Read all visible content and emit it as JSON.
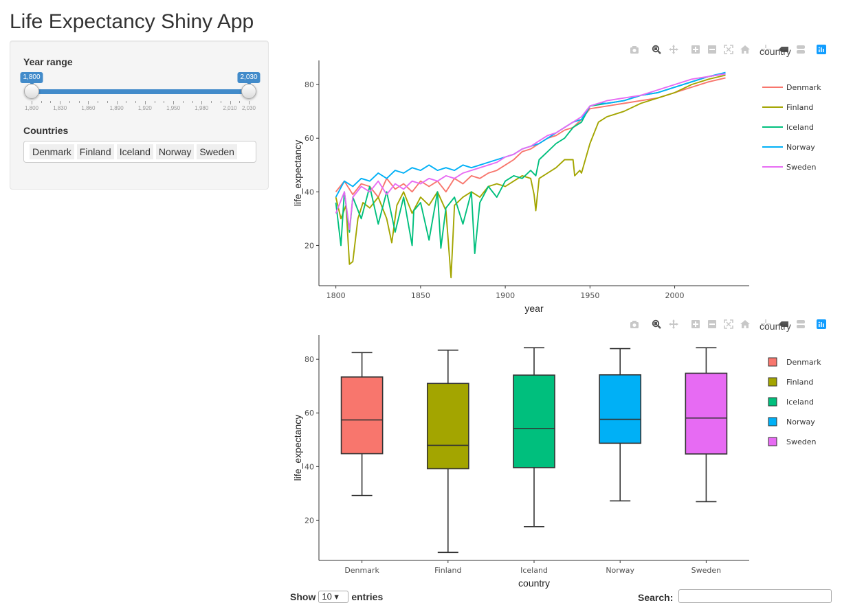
{
  "app": {
    "title": "Life Expectancy Shiny App"
  },
  "sidebar": {
    "year_range": {
      "label": "Year range",
      "min": 1800,
      "max": 2030,
      "selected_from": 1800,
      "selected_to": 2030,
      "from_label": "1,800",
      "to_label": "2,030",
      "grid_labels": [
        "1,800",
        "1,830",
        "1,860",
        "1,890",
        "1,920",
        "1,950",
        "1,980",
        "2,010",
        "2,030"
      ],
      "grid_values": [
        1800,
        1830,
        1860,
        1890,
        1920,
        1950,
        1980,
        2010,
        2030
      ]
    },
    "countries": {
      "label": "Countries",
      "selected": [
        "Denmark",
        "Finland",
        "Iceland",
        "Norway",
        "Sweden"
      ]
    }
  },
  "modebar_icons": [
    "camera-icon",
    "zoom-icon",
    "pan-icon",
    "zoom-in-icon",
    "zoom-out-icon",
    "autoscale-icon",
    "reset-axes-icon",
    "spike-lines-icon",
    "hover-closest-icon",
    "hover-compare-icon",
    "plotly-logo-icon"
  ],
  "colors": {
    "Denmark": "#F8766D",
    "Finland": "#A3A500",
    "Iceland": "#00BF7D",
    "Norway": "#00B0F6",
    "Sweden": "#E76BF3",
    "accent": "#428bca"
  },
  "chart_data": [
    {
      "type": "line",
      "title": "",
      "xlabel": "year",
      "ylabel": "life_expectancy",
      "legend_title": "country",
      "legend_position": "right",
      "grid": false,
      "xlim": [
        1790,
        2044
      ],
      "ylim": [
        5,
        89
      ],
      "x_ticks": [
        1800,
        1850,
        1900,
        1950,
        2000
      ],
      "y_ticks": [
        20,
        40,
        60,
        80
      ],
      "series": [
        {
          "name": "Denmark",
          "x": [
            1800,
            1805,
            1810,
            1815,
            1820,
            1825,
            1830,
            1835,
            1840,
            1845,
            1850,
            1855,
            1860,
            1865,
            1870,
            1875,
            1880,
            1885,
            1890,
            1895,
            1900,
            1905,
            1910,
            1915,
            1920,
            1925,
            1930,
            1935,
            1940,
            1945,
            1950,
            1960,
            1970,
            1980,
            1990,
            2000,
            2010,
            2020,
            2030
          ],
          "y": [
            40,
            44,
            39,
            43,
            42,
            38,
            45,
            41,
            43,
            40,
            44,
            42,
            44,
            40,
            45,
            43,
            46,
            45,
            47,
            48,
            50,
            52,
            55,
            56,
            58,
            60,
            61,
            63,
            64,
            67,
            71,
            72,
            73,
            74,
            75,
            77,
            79,
            81,
            82.5
          ]
        },
        {
          "name": "Finland",
          "x": [
            1800,
            1803,
            1806,
            1808,
            1810,
            1813,
            1816,
            1820,
            1825,
            1830,
            1833,
            1836,
            1840,
            1845,
            1850,
            1855,
            1860,
            1865,
            1867,
            1868,
            1870,
            1875,
            1880,
            1885,
            1890,
            1895,
            1900,
            1905,
            1910,
            1915,
            1917,
            1918,
            1920,
            1925,
            1930,
            1935,
            1940,
            1941,
            1944,
            1945,
            1950,
            1955,
            1960,
            1970,
            1980,
            1990,
            2000,
            2010,
            2020,
            2030
          ],
          "y": [
            38,
            30,
            35,
            13,
            14,
            30,
            36,
            34,
            38,
            30,
            21,
            35,
            40,
            32,
            38,
            35,
            40,
            33,
            16,
            8,
            35,
            38,
            40,
            38,
            42,
            43,
            42,
            44,
            46,
            45,
            39,
            33,
            45,
            47,
            49,
            52,
            52,
            46,
            48,
            47,
            58,
            66,
            68,
            70,
            73,
            75,
            77,
            80,
            82,
            83.5
          ]
        },
        {
          "name": "Iceland",
          "x": [
            1800,
            1803,
            1805,
            1808,
            1810,
            1815,
            1820,
            1825,
            1830,
            1835,
            1840,
            1845,
            1846,
            1850,
            1855,
            1860,
            1862,
            1865,
            1870,
            1875,
            1880,
            1882,
            1885,
            1890,
            1895,
            1900,
            1905,
            1910,
            1915,
            1918,
            1920,
            1925,
            1930,
            1935,
            1940,
            1945,
            1950,
            1960,
            1970,
            1980,
            1990,
            2000,
            2010,
            2020,
            2030
          ],
          "y": [
            36,
            20,
            40,
            25,
            38,
            30,
            42,
            28,
            40,
            25,
            38,
            20,
            33,
            36,
            22,
            40,
            19,
            34,
            38,
            28,
            40,
            17,
            36,
            42,
            38,
            44,
            46,
            45,
            48,
            46,
            52,
            55,
            58,
            60,
            64,
            66,
            72,
            73,
            74,
            76,
            77,
            79,
            81,
            83,
            84
          ]
        },
        {
          "name": "Norway",
          "x": [
            1800,
            1805,
            1810,
            1815,
            1820,
            1825,
            1830,
            1835,
            1840,
            1845,
            1850,
            1855,
            1860,
            1865,
            1870,
            1875,
            1880,
            1885,
            1890,
            1895,
            1900,
            1905,
            1910,
            1915,
            1920,
            1925,
            1930,
            1935,
            1940,
            1945,
            1950,
            1955,
            1960,
            1970,
            1980,
            1990,
            2000,
            2010,
            2020,
            2030
          ],
          "y": [
            38,
            44,
            42,
            45,
            44,
            47,
            45,
            48,
            47,
            49,
            48,
            50,
            48,
            49,
            48,
            50,
            49,
            50,
            51,
            52,
            53,
            54,
            56,
            57,
            58,
            60,
            62,
            64,
            66,
            67,
            72,
            73,
            73,
            74,
            76,
            77,
            79,
            81,
            83,
            84.5
          ]
        },
        {
          "name": "Sweden",
          "x": [
            1800,
            1805,
            1808,
            1810,
            1815,
            1820,
            1825,
            1830,
            1835,
            1840,
            1845,
            1850,
            1855,
            1860,
            1865,
            1870,
            1875,
            1880,
            1885,
            1890,
            1895,
            1900,
            1905,
            1910,
            1915,
            1920,
            1925,
            1930,
            1935,
            1940,
            1945,
            1950,
            1955,
            1960,
            1970,
            1980,
            1990,
            2000,
            2010,
            2020,
            2030
          ],
          "y": [
            32,
            40,
            26,
            38,
            42,
            40,
            44,
            39,
            43,
            41,
            44,
            43,
            45,
            44,
            46,
            45,
            47,
            48,
            49,
            50,
            51,
            53,
            54,
            56,
            57,
            59,
            61,
            62,
            64,
            66,
            68,
            72,
            73,
            74,
            75,
            76,
            78,
            80,
            82,
            83,
            84
          ]
        }
      ]
    },
    {
      "type": "box",
      "title": "",
      "xlabel": "country",
      "ylabel": "life_expectancy",
      "legend_title": "country",
      "legend_position": "right",
      "grid": false,
      "categories": [
        "Denmark",
        "Finland",
        "Iceland",
        "Norway",
        "Sweden"
      ],
      "ylim": [
        5,
        89
      ],
      "y_ticks": [
        20,
        40,
        60,
        80
      ],
      "boxes": [
        {
          "name": "Denmark",
          "min": 29.2,
          "q1": 44.8,
          "median": 57.4,
          "q3": 73.4,
          "max": 82.5
        },
        {
          "name": "Finland",
          "min": 8.0,
          "q1": 39.2,
          "median": 47.9,
          "q3": 71.0,
          "max": 83.4
        },
        {
          "name": "Iceland",
          "min": 17.6,
          "q1": 39.6,
          "median": 54.2,
          "q3": 74.1,
          "max": 84.3
        },
        {
          "name": "Norway",
          "min": 27.2,
          "q1": 48.7,
          "median": 57.6,
          "q3": 74.2,
          "max": 84.0
        },
        {
          "name": "Sweden",
          "min": 26.9,
          "q1": 44.7,
          "median": 58.1,
          "q3": 74.8,
          "max": 84.3
        }
      ]
    }
  ],
  "table_controls": {
    "show_label": "Show",
    "length_value": "10",
    "entries_label": "entries",
    "search_label": "Search:"
  }
}
